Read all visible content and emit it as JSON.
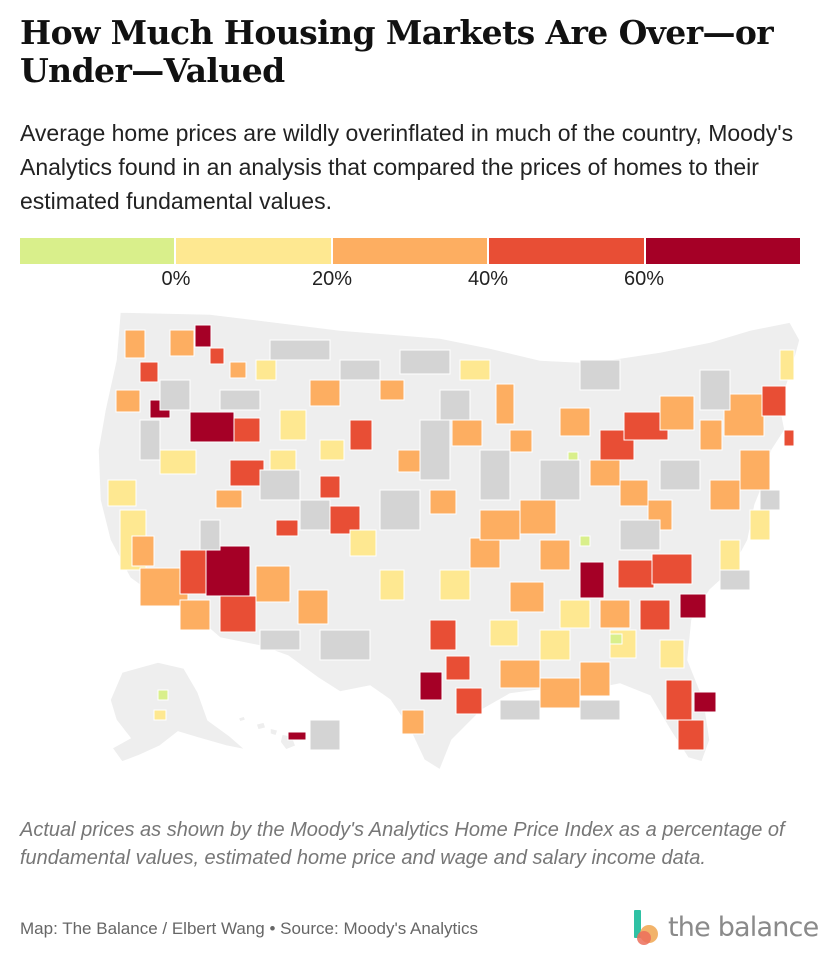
{
  "title": "How Much Housing Markets Are Over—or Under—Valued",
  "subtitle": "Average home prices are wildly overinflated in much of the country, Moody's Analytics found in an analysis that compared the prices of homes to their estimated fundamental values.",
  "legend": {
    "bins": [
      {
        "color": "#d9ef8b",
        "label": "below 0%"
      },
      {
        "color": "#fee891",
        "label": "0% to 20%"
      },
      {
        "color": "#fdae61",
        "label": "20% to 40%"
      },
      {
        "color": "#e84e35",
        "label": "40% to 60%"
      },
      {
        "color": "#a50026",
        "label": "over 60%"
      }
    ],
    "ticks": [
      "0%",
      "20%",
      "40%",
      "60%"
    ]
  },
  "map": {
    "background_color": "#eeeeee",
    "no_data_color": "#d4d4d4"
  },
  "note": "Actual prices as shown by the Moody's Analytics Home Price Index as a percentage of fundamental values, estimated home price and wage and salary income data.",
  "credit": "Map: The Balance / Elbert Wang • Source: Moody's Analytics",
  "logo": {
    "text": "the balance",
    "icon": "the-balance-logo-icon",
    "colors": [
      "#2fc1a4",
      "#f2b36a",
      "#ec6f5b"
    ]
  }
}
